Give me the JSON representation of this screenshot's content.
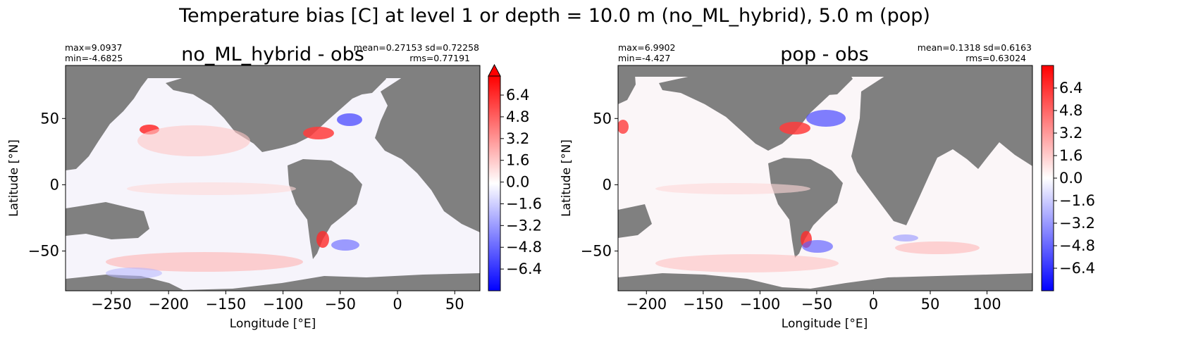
{
  "figure": {
    "suptitle": "Temperature bias [C] at level 1 or depth = 10.0 m (no_ML_hybrid), 5.0 m (pop)"
  },
  "colorscale": {
    "low": "#0000ff",
    "mid": "#ffffff",
    "high": "#ff0000",
    "land": "#808080"
  },
  "chart_data": [
    {
      "type": "heatmap",
      "title": "no_ML_hybrid - obs",
      "stats_left": [
        "max=9.0937",
        "min=-4.6825"
      ],
      "stats_right": [
        "mean=0.27153 sd=0.72258",
        "rms=0.77191"
      ],
      "xlabel": "Longitude [°E]",
      "ylabel": "Latitude [°N]",
      "xlim": [
        -290,
        72
      ],
      "ylim": [
        -80,
        90
      ],
      "xticks": [
        -250,
        -200,
        -150,
        -100,
        -50,
        0,
        50
      ],
      "xtick_labels": [
        "−250",
        "−200",
        "−150",
        "−100",
        "−50",
        "0",
        "50"
      ],
      "yticks": [
        -50,
        0,
        50
      ],
      "ytick_labels": [
        "−50",
        "0",
        "50"
      ],
      "colorbar": {
        "vmin": -8.0,
        "vmax": 8.0,
        "extend": "max",
        "ticks": [
          6.4,
          4.8,
          3.2,
          1.6,
          0.0,
          -1.6,
          -3.2,
          -4.8,
          -6.4
        ],
        "tick_labels": [
          "6.4",
          "4.8",
          "3.2",
          "1.6",
          "0.0",
          "−1.6",
          "−3.2",
          "−4.8",
          "−6.4"
        ]
      }
    },
    {
      "type": "heatmap",
      "title": "pop - obs",
      "stats_left": [
        "max=6.9902",
        "min=-4.427"
      ],
      "stats_right": [
        "mean=0.1318 sd=0.6163",
        "rms=0.63024"
      ],
      "xlabel": "Longitude [°E]",
      "ylabel": "Latitude [°N]",
      "xlim": [
        -225,
        140
      ],
      "ylim": [
        -80,
        90
      ],
      "xticks": [
        -200,
        -150,
        -100,
        -50,
        0,
        50,
        100
      ],
      "xtick_labels": [
        "−200",
        "−150",
        "−100",
        "−50",
        "0",
        "50",
        "100"
      ],
      "yticks": [
        -50,
        0,
        50
      ],
      "ytick_labels": [
        "−50",
        "0",
        "50"
      ],
      "colorbar": {
        "vmin": -8.0,
        "vmax": 8.0,
        "extend": "neither",
        "ticks": [
          6.4,
          4.8,
          3.2,
          1.6,
          0.0,
          -1.6,
          -3.2,
          -4.8,
          -6.4
        ],
        "tick_labels": [
          "6.4",
          "4.8",
          "3.2",
          "1.6",
          "0.0",
          "−1.6",
          "−3.2",
          "−4.8",
          "−6.4"
        ]
      }
    }
  ]
}
